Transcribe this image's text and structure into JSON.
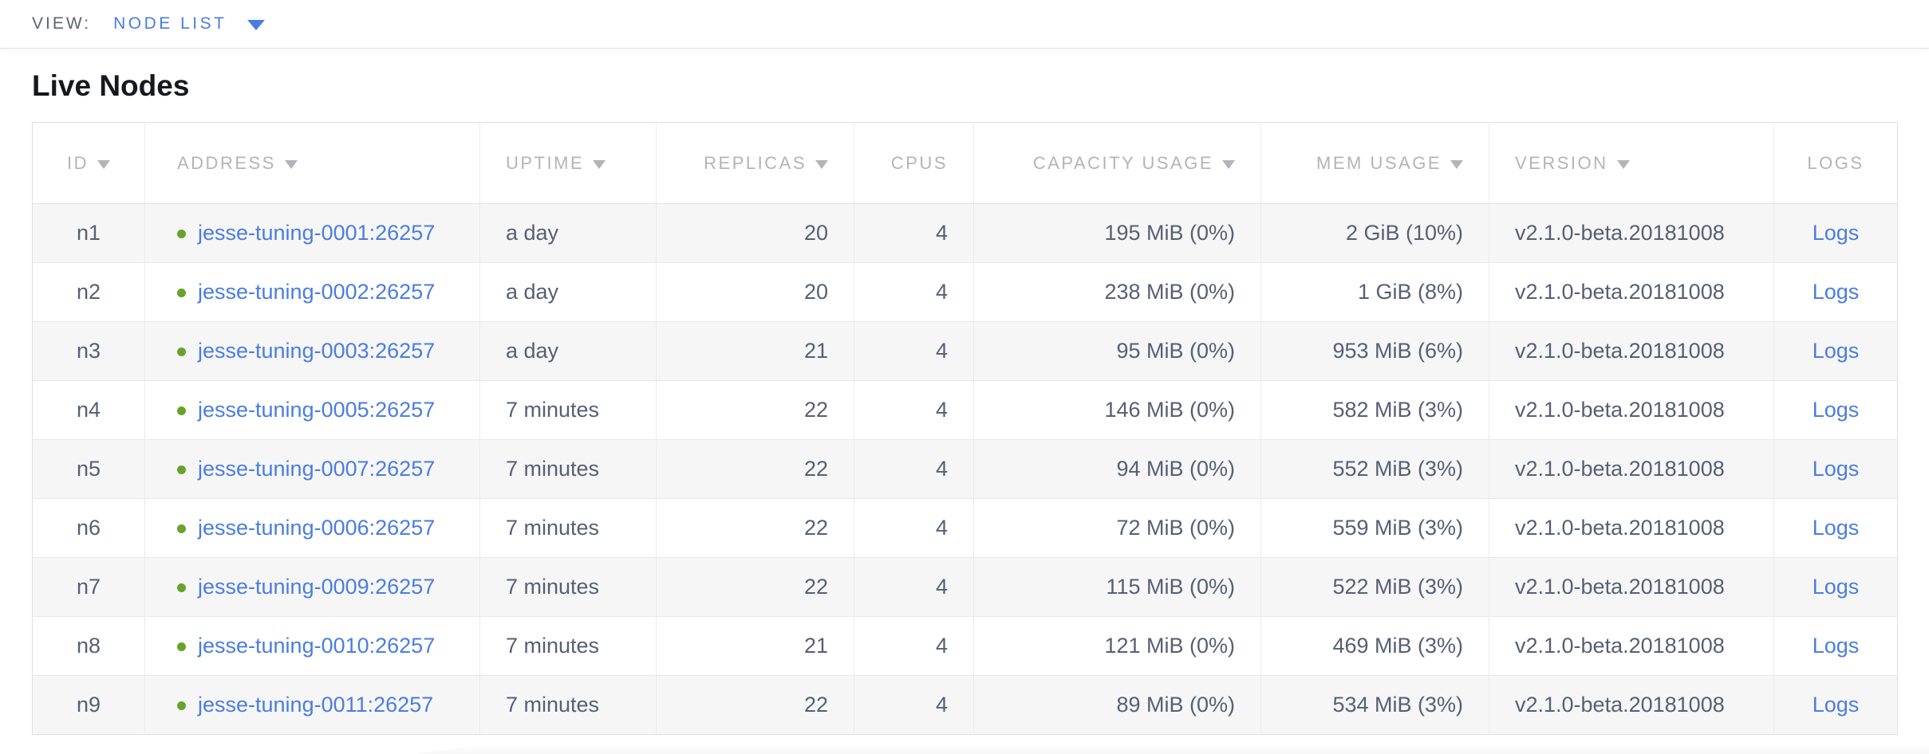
{
  "view_bar": {
    "label": "VIEW:",
    "selected": "NODE LIST"
  },
  "page": {
    "title": "Live Nodes"
  },
  "colors": {
    "link_blue": "#4a7de2",
    "live_green": "#68a32a",
    "header_gray": "#b2b4b8",
    "cell_text": "#575f73"
  },
  "table": {
    "columns": [
      {
        "key": "id",
        "label": "ID",
        "align": "center",
        "sortable": true
      },
      {
        "key": "address",
        "label": "ADDRESS",
        "align": "left",
        "sortable": true
      },
      {
        "key": "uptime",
        "label": "UPTIME",
        "align": "left",
        "sortable": true
      },
      {
        "key": "replicas",
        "label": "REPLICAS",
        "align": "right",
        "sortable": true
      },
      {
        "key": "cpus",
        "label": "CPUS",
        "align": "right",
        "sortable": false
      },
      {
        "key": "capacity",
        "label": "CAPACITY USAGE",
        "align": "right",
        "sortable": true
      },
      {
        "key": "mem",
        "label": "MEM USAGE",
        "align": "right",
        "sortable": true
      },
      {
        "key": "version",
        "label": "VERSION",
        "align": "left",
        "sortable": true
      },
      {
        "key": "logs",
        "label": "LOGS",
        "align": "center",
        "sortable": false
      }
    ],
    "rows": [
      {
        "id": "n1",
        "address": "jesse-tuning-0001:26257",
        "status": "live",
        "uptime": "a day",
        "replicas": "20",
        "cpus": "4",
        "capacity": "195 MiB (0%)",
        "mem": "2 GiB (10%)",
        "version": "v2.1.0-beta.20181008",
        "logs": "Logs"
      },
      {
        "id": "n2",
        "address": "jesse-tuning-0002:26257",
        "status": "live",
        "uptime": "a day",
        "replicas": "20",
        "cpus": "4",
        "capacity": "238 MiB (0%)",
        "mem": "1 GiB (8%)",
        "version": "v2.1.0-beta.20181008",
        "logs": "Logs"
      },
      {
        "id": "n3",
        "address": "jesse-tuning-0003:26257",
        "status": "live",
        "uptime": "a day",
        "replicas": "21",
        "cpus": "4",
        "capacity": "95 MiB (0%)",
        "mem": "953 MiB (6%)",
        "version": "v2.1.0-beta.20181008",
        "logs": "Logs"
      },
      {
        "id": "n4",
        "address": "jesse-tuning-0005:26257",
        "status": "live",
        "uptime": "7 minutes",
        "replicas": "22",
        "cpus": "4",
        "capacity": "146 MiB (0%)",
        "mem": "582 MiB (3%)",
        "version": "v2.1.0-beta.20181008",
        "logs": "Logs"
      },
      {
        "id": "n5",
        "address": "jesse-tuning-0007:26257",
        "status": "live",
        "uptime": "7 minutes",
        "replicas": "22",
        "cpus": "4",
        "capacity": "94 MiB (0%)",
        "mem": "552 MiB (3%)",
        "version": "v2.1.0-beta.20181008",
        "logs": "Logs"
      },
      {
        "id": "n6",
        "address": "jesse-tuning-0006:26257",
        "status": "live",
        "uptime": "7 minutes",
        "replicas": "22",
        "cpus": "4",
        "capacity": "72 MiB (0%)",
        "mem": "559 MiB (3%)",
        "version": "v2.1.0-beta.20181008",
        "logs": "Logs"
      },
      {
        "id": "n7",
        "address": "jesse-tuning-0009:26257",
        "status": "live",
        "uptime": "7 minutes",
        "replicas": "22",
        "cpus": "4",
        "capacity": "115 MiB (0%)",
        "mem": "522 MiB (3%)",
        "version": "v2.1.0-beta.20181008",
        "logs": "Logs"
      },
      {
        "id": "n8",
        "address": "jesse-tuning-0010:26257",
        "status": "live",
        "uptime": "7 minutes",
        "replicas": "21",
        "cpus": "4",
        "capacity": "121 MiB (0%)",
        "mem": "469 MiB (3%)",
        "version": "v2.1.0-beta.20181008",
        "logs": "Logs"
      },
      {
        "id": "n9",
        "address": "jesse-tuning-0011:26257",
        "status": "live",
        "uptime": "7 minutes",
        "replicas": "22",
        "cpus": "4",
        "capacity": "89 MiB (0%)",
        "mem": "534 MiB (3%)",
        "version": "v2.1.0-beta.20181008",
        "logs": "Logs"
      }
    ]
  }
}
